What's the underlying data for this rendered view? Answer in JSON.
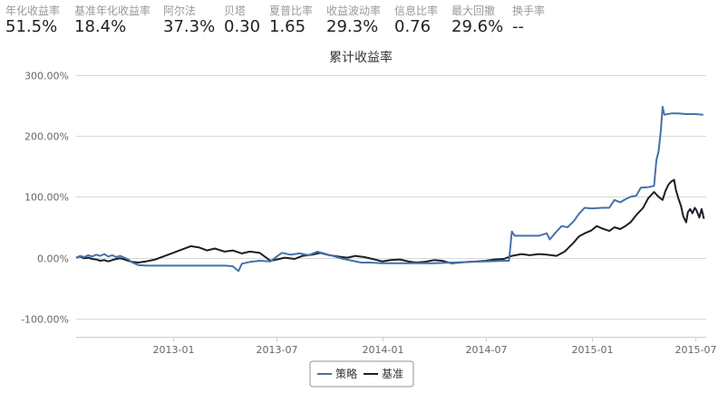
{
  "metrics": [
    {
      "label": "年化收益率",
      "value": "51.5%"
    },
    {
      "label": "基准年化收益率",
      "value": "18.4%"
    },
    {
      "label": "阿尔法",
      "value": "37.3%"
    },
    {
      "label": "贝塔",
      "value": "0.30"
    },
    {
      "label": "夏普比率",
      "value": "1.65"
    },
    {
      "label": "收益波动率",
      "value": "29.3%"
    },
    {
      "label": "信息比率",
      "value": "0.76"
    },
    {
      "label": "最大回撤",
      "value": "29.6%"
    },
    {
      "label": "换手率",
      "value": "--"
    }
  ],
  "chart_data": {
    "type": "line",
    "title": "累计收益率",
    "ylim": [
      -130,
      300
    ],
    "yticks": [
      -100,
      0,
      100,
      200,
      300
    ],
    "ytick_labels": [
      "-100.00%",
      "0.00%",
      "100.00%",
      "200.00%",
      "300.00%"
    ],
    "xlim": [
      "2012-07-16",
      "2015-07-20"
    ],
    "xticks": [
      "2013-01-01",
      "2013-07-01",
      "2014-01-01",
      "2014-07-01",
      "2015-01-01",
      "2015-07-01"
    ],
    "xtick_labels": [
      "2013-01",
      "2013-07",
      "2014-01",
      "2014-07",
      "2015-01",
      "2015-07"
    ],
    "grid": true,
    "legend": "bottom",
    "colors": {
      "strategy": "#4572a7",
      "benchmark": "#1a1f28"
    },
    "series": [
      {
        "name": "策略",
        "color": "#4572a7",
        "points": [
          [
            "2012-07-16",
            0
          ],
          [
            "2012-07-23",
            3
          ],
          [
            "2012-07-30",
            1
          ],
          [
            "2012-08-06",
            4
          ],
          [
            "2012-08-13",
            2
          ],
          [
            "2012-08-20",
            5
          ],
          [
            "2012-08-27",
            3
          ],
          [
            "2012-09-03",
            6
          ],
          [
            "2012-09-10",
            2
          ],
          [
            "2012-09-17",
            4
          ],
          [
            "2012-09-24",
            1
          ],
          [
            "2012-10-01",
            3
          ],
          [
            "2012-10-08",
            0
          ],
          [
            "2012-10-15",
            -3
          ],
          [
            "2012-10-22",
            -8
          ],
          [
            "2012-11-01",
            -12
          ],
          [
            "2012-11-15",
            -13
          ],
          [
            "2012-12-01",
            -13
          ],
          [
            "2013-01-01",
            -13
          ],
          [
            "2013-02-01",
            -13
          ],
          [
            "2013-03-01",
            -13
          ],
          [
            "2013-04-01",
            -13
          ],
          [
            "2013-04-15",
            -14
          ],
          [
            "2013-04-25",
            -22
          ],
          [
            "2013-05-01",
            -10
          ],
          [
            "2013-05-15",
            -7
          ],
          [
            "2013-06-01",
            -5
          ],
          [
            "2013-06-20",
            -6
          ],
          [
            "2013-07-01",
            2
          ],
          [
            "2013-07-10",
            8
          ],
          [
            "2013-07-25",
            5
          ],
          [
            "2013-08-10",
            7
          ],
          [
            "2013-08-25",
            4
          ],
          [
            "2013-09-10",
            10
          ],
          [
            "2013-09-25",
            6
          ],
          [
            "2013-10-10",
            2
          ],
          [
            "2013-10-25",
            -2
          ],
          [
            "2013-11-10",
            -5
          ],
          [
            "2013-11-25",
            -8
          ],
          [
            "2013-12-10",
            -8
          ],
          [
            "2014-01-01",
            -9
          ],
          [
            "2014-02-01",
            -9
          ],
          [
            "2014-03-01",
            -9
          ],
          [
            "2014-04-01",
            -9
          ],
          [
            "2014-05-01",
            -8
          ],
          [
            "2014-06-01",
            -7
          ],
          [
            "2014-07-01",
            -6
          ],
          [
            "2014-08-01",
            -5
          ],
          [
            "2014-08-10",
            -5
          ],
          [
            "2014-08-15",
            43
          ],
          [
            "2014-08-20",
            36
          ],
          [
            "2014-09-01",
            36
          ],
          [
            "2014-10-01",
            36
          ],
          [
            "2014-10-15",
            40
          ],
          [
            "2014-10-20",
            30
          ],
          [
            "2014-11-01",
            43
          ],
          [
            "2014-11-10",
            52
          ],
          [
            "2014-11-20",
            50
          ],
          [
            "2014-12-01",
            60
          ],
          [
            "2014-12-10",
            72
          ],
          [
            "2014-12-20",
            82
          ],
          [
            "2015-01-01",
            81
          ],
          [
            "2015-01-20",
            82
          ],
          [
            "2015-02-01",
            82
          ],
          [
            "2015-02-10",
            95
          ],
          [
            "2015-02-20",
            91
          ],
          [
            "2015-03-01",
            96
          ],
          [
            "2015-03-10",
            100
          ],
          [
            "2015-03-20",
            102
          ],
          [
            "2015-03-28",
            115
          ],
          [
            "2015-04-10",
            116
          ],
          [
            "2015-04-20",
            118
          ],
          [
            "2015-04-24",
            160
          ],
          [
            "2015-04-28",
            175
          ],
          [
            "2015-05-02",
            210
          ],
          [
            "2015-05-05",
            248
          ],
          [
            "2015-05-08",
            235
          ],
          [
            "2015-05-20",
            237
          ],
          [
            "2015-06-01",
            237
          ],
          [
            "2015-06-15",
            236
          ],
          [
            "2015-07-01",
            236
          ],
          [
            "2015-07-15",
            235
          ]
        ]
      },
      {
        "name": "基准",
        "color": "#1a1f28",
        "points": [
          [
            "2012-07-16",
            0
          ],
          [
            "2012-07-23",
            2
          ],
          [
            "2012-07-30",
            -1
          ],
          [
            "2012-08-06",
            0
          ],
          [
            "2012-08-13",
            -2
          ],
          [
            "2012-08-20",
            -3
          ],
          [
            "2012-08-27",
            -5
          ],
          [
            "2012-09-03",
            -4
          ],
          [
            "2012-09-10",
            -6
          ],
          [
            "2012-09-17",
            -4
          ],
          [
            "2012-09-24",
            -2
          ],
          [
            "2012-10-01",
            -1
          ],
          [
            "2012-10-08",
            -3
          ],
          [
            "2012-10-15",
            -5
          ],
          [
            "2012-10-22",
            -7
          ],
          [
            "2012-11-01",
            -8
          ],
          [
            "2012-11-15",
            -6
          ],
          [
            "2012-12-01",
            -3
          ],
          [
            "2012-12-15",
            2
          ],
          [
            "2013-01-01",
            8
          ],
          [
            "2013-01-15",
            13
          ],
          [
            "2013-02-01",
            19
          ],
          [
            "2013-02-15",
            17
          ],
          [
            "2013-03-01",
            12
          ],
          [
            "2013-03-15",
            15
          ],
          [
            "2013-04-01",
            10
          ],
          [
            "2013-04-15",
            12
          ],
          [
            "2013-05-01",
            7
          ],
          [
            "2013-05-15",
            10
          ],
          [
            "2013-06-01",
            8
          ],
          [
            "2013-06-20",
            -5
          ],
          [
            "2013-07-01",
            -3
          ],
          [
            "2013-07-15",
            0
          ],
          [
            "2013-08-01",
            -2
          ],
          [
            "2013-08-15",
            3
          ],
          [
            "2013-09-01",
            5
          ],
          [
            "2013-09-15",
            8
          ],
          [
            "2013-10-01",
            4
          ],
          [
            "2013-10-15",
            2
          ],
          [
            "2013-11-01",
            0
          ],
          [
            "2013-11-15",
            3
          ],
          [
            "2013-12-01",
            1
          ],
          [
            "2013-12-15",
            -2
          ],
          [
            "2014-01-01",
            -6
          ],
          [
            "2014-01-15",
            -4
          ],
          [
            "2014-02-01",
            -3
          ],
          [
            "2014-02-15",
            -6
          ],
          [
            "2014-03-01",
            -8
          ],
          [
            "2014-03-15",
            -7
          ],
          [
            "2014-04-01",
            -4
          ],
          [
            "2014-04-15",
            -5
          ],
          [
            "2014-05-01",
            -9
          ],
          [
            "2014-05-15",
            -8
          ],
          [
            "2014-06-01",
            -7
          ],
          [
            "2014-06-15",
            -6
          ],
          [
            "2014-07-01",
            -5
          ],
          [
            "2014-07-15",
            -3
          ],
          [
            "2014-08-01",
            -2
          ],
          [
            "2014-08-15",
            3
          ],
          [
            "2014-09-01",
            6
          ],
          [
            "2014-09-15",
            4
          ],
          [
            "2014-10-01",
            6
          ],
          [
            "2014-10-15",
            5
          ],
          [
            "2014-11-01",
            3
          ],
          [
            "2014-11-15",
            10
          ],
          [
            "2014-12-01",
            25
          ],
          [
            "2014-12-10",
            35
          ],
          [
            "2014-12-20",
            40
          ],
          [
            "2015-01-01",
            45
          ],
          [
            "2015-01-10",
            52
          ],
          [
            "2015-01-20",
            48
          ],
          [
            "2015-02-01",
            44
          ],
          [
            "2015-02-10",
            50
          ],
          [
            "2015-02-20",
            47
          ],
          [
            "2015-03-01",
            52
          ],
          [
            "2015-03-10",
            58
          ],
          [
            "2015-03-20",
            70
          ],
          [
            "2015-04-01",
            82
          ],
          [
            "2015-04-10",
            98
          ],
          [
            "2015-04-20",
            108
          ],
          [
            "2015-04-28",
            100
          ],
          [
            "2015-05-05",
            95
          ],
          [
            "2015-05-10",
            110
          ],
          [
            "2015-05-15",
            120
          ],
          [
            "2015-05-20",
            125
          ],
          [
            "2015-05-25",
            128
          ],
          [
            "2015-05-28",
            112
          ],
          [
            "2015-06-02",
            96
          ],
          [
            "2015-06-06",
            85
          ],
          [
            "2015-06-10",
            68
          ],
          [
            "2015-06-15",
            58
          ],
          [
            "2015-06-18",
            75
          ],
          [
            "2015-06-22",
            80
          ],
          [
            "2015-06-26",
            73
          ],
          [
            "2015-06-30",
            82
          ],
          [
            "2015-07-03",
            78
          ],
          [
            "2015-07-08",
            66
          ],
          [
            "2015-07-12",
            80
          ],
          [
            "2015-07-16",
            64
          ]
        ]
      }
    ]
  }
}
